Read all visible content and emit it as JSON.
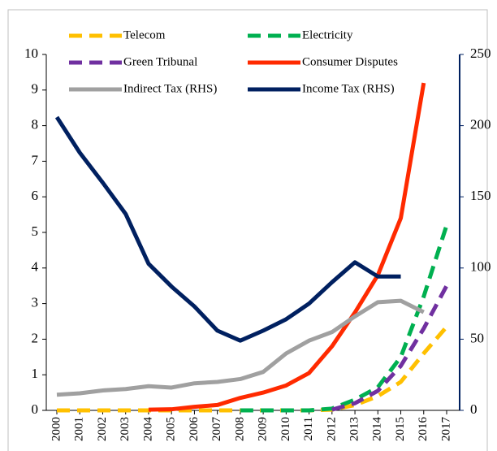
{
  "chart_data": {
    "type": "line",
    "categories": [
      "2000",
      "2001",
      "2002",
      "2003",
      "2004",
      "2005",
      "2006",
      "2007",
      "2008",
      "2009",
      "2010",
      "2011",
      "2012",
      "2013",
      "2014",
      "2015",
      "2016",
      "2017"
    ],
    "series": [
      {
        "name": "Telecom",
        "color": "#ffc000",
        "style": "dashed",
        "axis": "y",
        "values": [
          0,
          0,
          0,
          0,
          0,
          0,
          0,
          0,
          0,
          0,
          0,
          0,
          0.02,
          0.15,
          0.4,
          0.8,
          1.6,
          2.35
        ]
      },
      {
        "name": "Electricity",
        "color": "#00b050",
        "style": "dashed",
        "axis": "y",
        "values": [
          null,
          null,
          null,
          null,
          null,
          null,
          null,
          null,
          0,
          0,
          0,
          0,
          0.05,
          0.3,
          0.65,
          1.5,
          3.2,
          5.2
        ]
      },
      {
        "name": "Green Tribunal",
        "color": "#7030a0",
        "style": "dashed",
        "axis": "y",
        "values": [
          null,
          null,
          null,
          null,
          null,
          null,
          null,
          null,
          null,
          null,
          null,
          null,
          0.02,
          0.2,
          0.55,
          1.25,
          2.3,
          3.5
        ]
      },
      {
        "name": "Consumer Disputes",
        "color": "#ff2a00",
        "style": "solid",
        "axis": "y",
        "values": [
          null,
          null,
          null,
          null,
          0.02,
          0.03,
          0.1,
          0.15,
          0.35,
          0.5,
          0.7,
          1.05,
          1.8,
          2.75,
          3.8,
          5.4,
          9.2,
          null
        ]
      },
      {
        "name": "Indirect Tax (RHS)",
        "color": "#a0a0a0",
        "style": "solid",
        "axis": "y2",
        "values": [
          11,
          12,
          14,
          15,
          17,
          16,
          19,
          20,
          22,
          27,
          40,
          49,
          55,
          66,
          76,
          77,
          69,
          null
        ]
      },
      {
        "name": "Income Tax (RHS)",
        "color": "#002060",
        "style": "solid",
        "axis": "y2",
        "values": [
          206,
          181,
          160,
          138,
          103,
          87,
          73,
          56,
          49,
          56,
          64,
          75,
          90,
          104,
          94,
          94,
          null,
          null
        ]
      }
    ],
    "ylim": [
      0,
      10
    ],
    "yticks": [
      0,
      1,
      2,
      3,
      4,
      5,
      6,
      7,
      8,
      9,
      10
    ],
    "y2lim": [
      0,
      250
    ],
    "y2ticks": [
      0,
      50,
      100,
      150,
      200,
      250
    ],
    "legend": "top"
  }
}
